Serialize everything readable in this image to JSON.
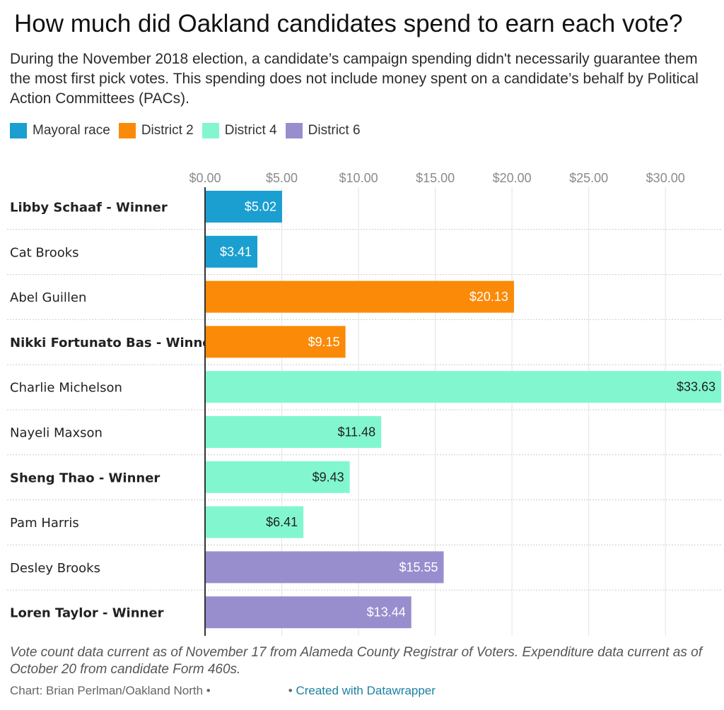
{
  "title": "How much did Oakland candidates spend to earn each vote?",
  "subtitle": "During the November 2018 election, a candidate’s campaign spending didn't necessarily guarantee them the most first pick votes. This spending does not include money spent on a candidate’s behalf by Political Action Committees (PACs).",
  "legend": [
    {
      "label": "Mayoral race",
      "color": "#1a9fd0"
    },
    {
      "label": "District 2",
      "color": "#fb8a09"
    },
    {
      "label": "District 4",
      "color": "#82f7cf"
    },
    {
      "label": "District 6",
      "color": "#988ece"
    }
  ],
  "chart_data": {
    "type": "bar",
    "orientation": "horizontal",
    "xlim": [
      0,
      33.63
    ],
    "ticks": [
      0,
      5,
      10,
      15,
      20,
      25,
      30
    ],
    "tick_labels": [
      "$0.00",
      "$5.00",
      "$10.00",
      "$15.00",
      "$20.00",
      "$25.00",
      "$30.00"
    ],
    "grid": true,
    "rows": [
      {
        "name": "Libby Schaaf - Winner",
        "value": 5.02,
        "label": "$5.02",
        "group": "Mayoral race",
        "color": "#1a9fd0",
        "winner": true,
        "text_color": "#ffffff"
      },
      {
        "name": "Cat Brooks",
        "value": 3.41,
        "label": "$3.41",
        "group": "Mayoral race",
        "color": "#1a9fd0",
        "winner": false,
        "text_color": "#ffffff"
      },
      {
        "name": "Abel Guillen",
        "value": 20.13,
        "label": "$20.13",
        "group": "District 2",
        "color": "#fb8a09",
        "winner": false,
        "text_color": "#ffffff"
      },
      {
        "name": "Nikki Fortunato Bas - Winner",
        "value": 9.15,
        "label": "$9.15",
        "group": "District 2",
        "color": "#fb8a09",
        "winner": true,
        "text_color": "#ffffff"
      },
      {
        "name": "Charlie Michelson",
        "value": 33.63,
        "label": "$33.63",
        "group": "District 4",
        "color": "#82f7cf",
        "winner": false,
        "text_color": "#222222"
      },
      {
        "name": "Nayeli Maxson",
        "value": 11.48,
        "label": "$11.48",
        "group": "District 4",
        "color": "#82f7cf",
        "winner": false,
        "text_color": "#222222"
      },
      {
        "name": "Sheng Thao - Winner",
        "value": 9.43,
        "label": "$9.43",
        "group": "District 4",
        "color": "#82f7cf",
        "winner": true,
        "text_color": "#222222"
      },
      {
        "name": "Pam Harris",
        "value": 6.41,
        "label": "$6.41",
        "group": "District 4",
        "color": "#82f7cf",
        "winner": false,
        "text_color": "#222222"
      },
      {
        "name": "Desley Brooks",
        "value": 15.55,
        "label": "$15.55",
        "group": "District 6",
        "color": "#988ece",
        "winner": false,
        "text_color": "#ffffff"
      },
      {
        "name": "Loren Taylor - Winner",
        "value": 13.44,
        "label": "$13.44",
        "group": "District 6",
        "color": "#988ece",
        "winner": true,
        "text_color": "#ffffff"
      }
    ]
  },
  "footer_note": "Vote count data current as of November 17 from Alameda County Registrar of Voters. Expenditure data current as of October 20 from candidate Form 460s.",
  "credits": {
    "byline": "Chart: Brian Perlman/Oakland North •",
    "dot": "•",
    "datawrapper": "Created with Datawrapper"
  }
}
